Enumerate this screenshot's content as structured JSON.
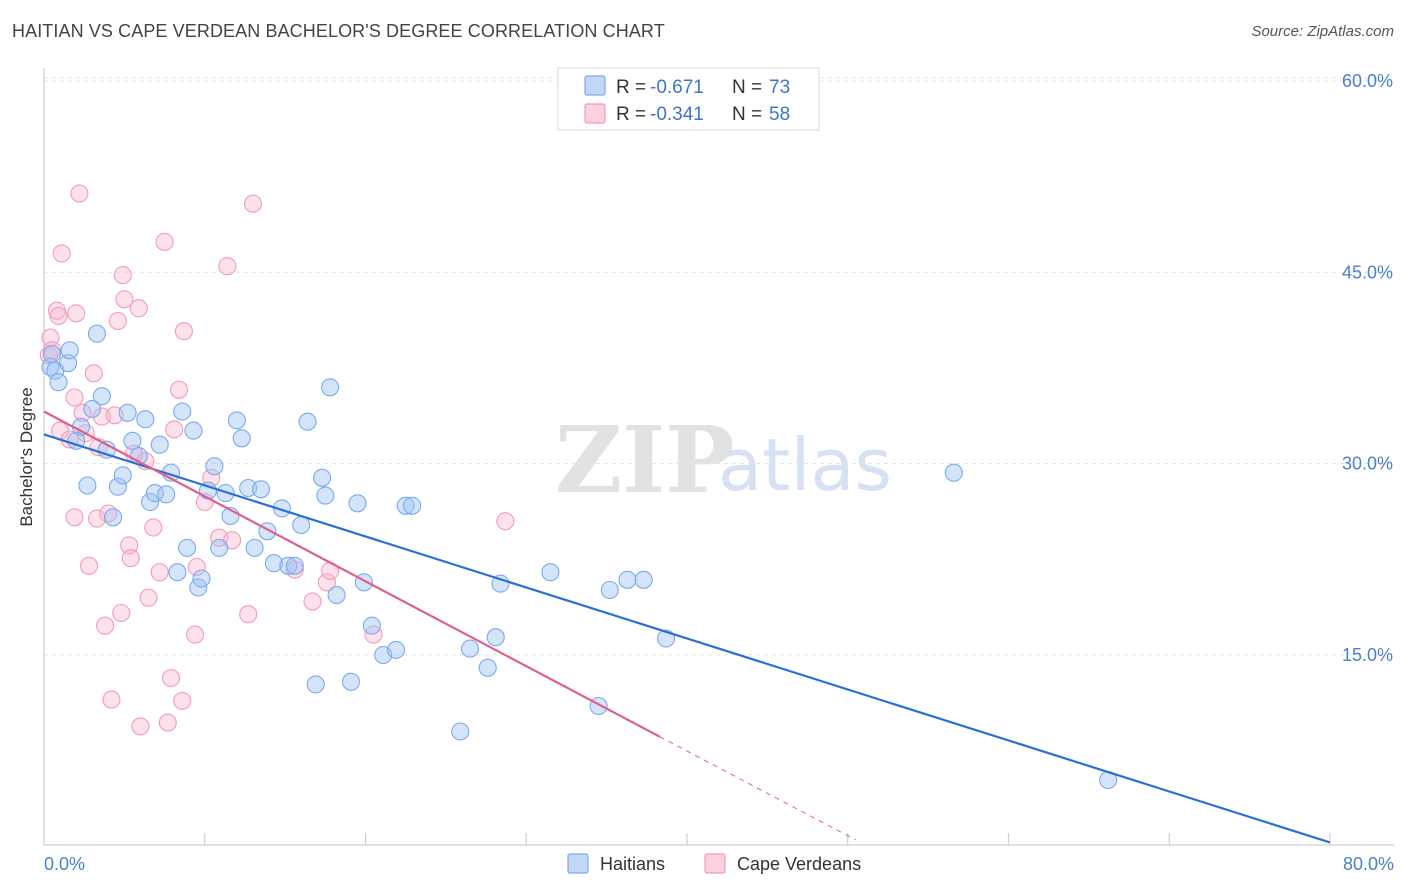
{
  "header": {
    "title": "HAITIAN VS CAPE VERDEAN BACHELOR'S DEGREE CORRELATION CHART",
    "source": "Source: ZipAtlas.com"
  },
  "watermark": {
    "zip": "ZIP",
    "atlas": "atlas"
  },
  "legend_top": {
    "rows": [
      {
        "r_label": "R =",
        "r_value": "-0.671",
        "n_label": "N =",
        "n_value": "73",
        "color": "#7aaaf0"
      },
      {
        "r_label": "R =",
        "r_value": "-0.341",
        "n_label": "N =",
        "n_value": "58",
        "color": "#f59ab8"
      }
    ]
  },
  "legend_bottom": {
    "items": [
      "Haitians",
      "Cape Verdeans"
    ]
  },
  "chart_data": {
    "type": "scatter",
    "title": "HAITIAN VS CAPE VERDEAN BACHELOR'S DEGREE CORRELATION CHART",
    "xlabel": "",
    "ylabel": "Bachelor's Degree",
    "xlim": [
      0,
      80
    ],
    "ylim": [
      0,
      60
    ],
    "x_tick_labels": [
      "0.0%",
      "80.0%"
    ],
    "y_ticks": [
      15,
      30,
      45,
      60
    ],
    "y_tick_labels": [
      "15.0%",
      "30.0%",
      "45.0%",
      "60.0%"
    ],
    "grid": true,
    "series": [
      {
        "name": "Haitians",
        "color": "#7aaaf0",
        "line_color": "#2b6fd6",
        "r": -0.671,
        "n": 73,
        "trend": {
          "x0": 0,
          "y0": 32.2,
          "x1": 80,
          "y1": 0.2
        },
        "points": [
          [
            0.4,
            37.5
          ],
          [
            0.5,
            38.5
          ],
          [
            0.7,
            37.2
          ],
          [
            0.9,
            36.3
          ],
          [
            1.5,
            37.8
          ],
          [
            1.6,
            38.8
          ],
          [
            2.3,
            32.8
          ],
          [
            2.0,
            31.7
          ],
          [
            2.7,
            28.2
          ],
          [
            3.0,
            34.2
          ],
          [
            3.3,
            40.1
          ],
          [
            3.6,
            35.2
          ],
          [
            3.9,
            31.0
          ],
          [
            4.3,
            25.7
          ],
          [
            4.6,
            28.1
          ],
          [
            4.9,
            29.0
          ],
          [
            5.2,
            33.9
          ],
          [
            5.5,
            31.7
          ],
          [
            5.9,
            30.5
          ],
          [
            6.3,
            33.4
          ],
          [
            6.6,
            26.9
          ],
          [
            6.9,
            27.6
          ],
          [
            7.2,
            31.4
          ],
          [
            7.6,
            27.5
          ],
          [
            7.9,
            29.2
          ],
          [
            8.3,
            21.4
          ],
          [
            8.6,
            34.0
          ],
          [
            8.9,
            23.3
          ],
          [
            9.3,
            32.5
          ],
          [
            9.6,
            20.2
          ],
          [
            9.8,
            20.9
          ],
          [
            10.2,
            27.8
          ],
          [
            10.6,
            29.7
          ],
          [
            10.9,
            23.3
          ],
          [
            11.3,
            27.6
          ],
          [
            11.6,
            25.8
          ],
          [
            12.0,
            33.3
          ],
          [
            12.3,
            31.9
          ],
          [
            12.7,
            28.0
          ],
          [
            13.1,
            23.3
          ],
          [
            13.5,
            27.9
          ],
          [
            13.9,
            24.6
          ],
          [
            14.3,
            22.1
          ],
          [
            14.8,
            26.4
          ],
          [
            15.2,
            21.9
          ],
          [
            15.6,
            21.9
          ],
          [
            16.0,
            25.1
          ],
          [
            16.4,
            33.2
          ],
          [
            16.9,
            12.6
          ],
          [
            17.3,
            28.8
          ],
          [
            17.5,
            27.4
          ],
          [
            17.8,
            35.9
          ],
          [
            18.2,
            19.6
          ],
          [
            19.1,
            12.8
          ],
          [
            19.5,
            26.8
          ],
          [
            19.9,
            20.6
          ],
          [
            20.4,
            17.2
          ],
          [
            21.1,
            14.9
          ],
          [
            21.9,
            15.3
          ],
          [
            22.5,
            26.6
          ],
          [
            22.9,
            26.6
          ],
          [
            25.9,
            8.9
          ],
          [
            26.5,
            15.4
          ],
          [
            27.6,
            13.9
          ],
          [
            28.1,
            16.3
          ],
          [
            28.4,
            20.5
          ],
          [
            31.5,
            21.4
          ],
          [
            34.5,
            10.9
          ],
          [
            35.2,
            20.0
          ],
          [
            36.3,
            20.8
          ],
          [
            37.3,
            20.8
          ],
          [
            38.7,
            16.2
          ],
          [
            56.6,
            29.2
          ],
          [
            66.2,
            5.1
          ]
        ]
      },
      {
        "name": "Cape Verdeans",
        "color": "#f59ab8",
        "line_color": "#e0608a",
        "r": -0.341,
        "n": 58,
        "trend": {
          "x0": 0,
          "y0": 34.0,
          "x1": 38.3,
          "y1": 8.5,
          "dashed_to_x": 50.5,
          "dashed_to_y": 0.4
        },
        "points": [
          [
            0.3,
            38.4
          ],
          [
            0.4,
            39.8
          ],
          [
            0.5,
            38.8
          ],
          [
            0.8,
            41.9
          ],
          [
            0.9,
            41.5
          ],
          [
            1.0,
            32.5
          ],
          [
            1.1,
            46.4
          ],
          [
            1.6,
            31.8
          ],
          [
            1.9,
            35.1
          ],
          [
            1.9,
            25.7
          ],
          [
            2.0,
            41.7
          ],
          [
            2.2,
            51.1
          ],
          [
            2.4,
            33.9
          ],
          [
            2.6,
            32.3
          ],
          [
            2.8,
            21.9
          ],
          [
            3.1,
            37.0
          ],
          [
            3.3,
            25.6
          ],
          [
            3.4,
            31.2
          ],
          [
            3.6,
            33.6
          ],
          [
            3.8,
            17.2
          ],
          [
            4.0,
            26.0
          ],
          [
            4.2,
            11.4
          ],
          [
            4.4,
            33.7
          ],
          [
            4.6,
            41.1
          ],
          [
            4.8,
            18.2
          ],
          [
            4.9,
            44.7
          ],
          [
            5.0,
            42.8
          ],
          [
            5.3,
            23.5
          ],
          [
            5.4,
            22.5
          ],
          [
            5.6,
            30.7
          ],
          [
            5.9,
            42.1
          ],
          [
            6.0,
            9.3
          ],
          [
            6.3,
            30.1
          ],
          [
            6.5,
            19.4
          ],
          [
            6.8,
            24.9
          ],
          [
            7.2,
            21.4
          ],
          [
            7.5,
            47.3
          ],
          [
            7.7,
            9.6
          ],
          [
            7.9,
            13.1
          ],
          [
            8.1,
            32.6
          ],
          [
            8.4,
            35.7
          ],
          [
            8.6,
            11.3
          ],
          [
            8.7,
            40.3
          ],
          [
            9.4,
            16.5
          ],
          [
            9.5,
            21.8
          ],
          [
            10.0,
            26.9
          ],
          [
            10.4,
            28.8
          ],
          [
            10.9,
            24.1
          ],
          [
            11.4,
            45.4
          ],
          [
            11.7,
            23.9
          ],
          [
            12.7,
            18.1
          ],
          [
            13.0,
            50.3
          ],
          [
            15.6,
            21.6
          ],
          [
            16.7,
            19.1
          ],
          [
            17.6,
            20.6
          ],
          [
            17.8,
            21.5
          ],
          [
            20.5,
            16.5
          ],
          [
            28.7,
            25.4
          ]
        ]
      }
    ]
  }
}
